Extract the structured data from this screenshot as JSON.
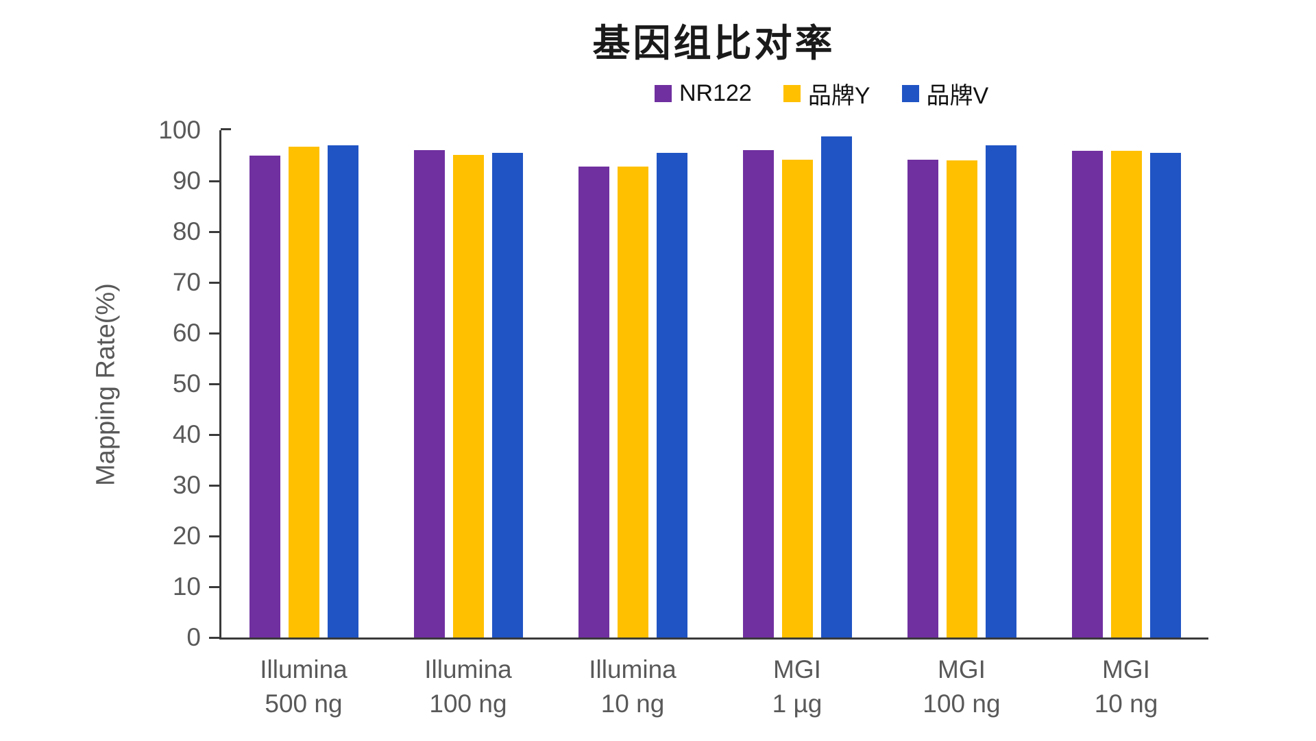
{
  "title": "基因组比对率",
  "legend": {
    "items": [
      {
        "label": "NR122",
        "color": "#7030A0"
      },
      {
        "label": "品牌Y",
        "color": "#FFC000"
      },
      {
        "label": "品牌V",
        "color": "#2054C4"
      }
    ]
  },
  "chart_data": {
    "type": "bar",
    "title": "基因组比对率",
    "xlabel": "",
    "ylabel": "Mapping Rate(%)",
    "ylim": [
      0,
      100
    ],
    "y_ticks": [
      0,
      10,
      20,
      30,
      40,
      50,
      60,
      70,
      80,
      90,
      100
    ],
    "grid": false,
    "legend_position": "top-right",
    "axis_color": "#3a3a3a",
    "tick_label_color": "#595959",
    "categories": [
      "Illumina 500 ng",
      "Illumina 100 ng",
      "Illumina 10 ng",
      "MGI 1 µg",
      "MGI 100 ng",
      "MGI 10 ng"
    ],
    "categories_lines": [
      [
        "Illumina",
        "500 ng"
      ],
      [
        "Illumina",
        "100 ng"
      ],
      [
        "Illumina",
        "10 ng"
      ],
      [
        "MGI",
        "1 µg"
      ],
      [
        "MGI",
        "100 ng"
      ],
      [
        "MGI",
        "10 ng"
      ]
    ],
    "series": [
      {
        "name": "NR122",
        "color": "#7030A0",
        "values": [
          95.0,
          96.1,
          92.8,
          96.1,
          94.2,
          95.9
        ]
      },
      {
        "name": "品牌Y",
        "color": "#FFC000",
        "values": [
          96.8,
          95.2,
          92.8,
          94.2,
          94.0,
          95.9
        ]
      },
      {
        "name": "品牌V",
        "color": "#2054C4",
        "values": [
          97.0,
          95.5,
          95.5,
          98.8,
          97.0,
          95.5
        ]
      }
    ]
  }
}
